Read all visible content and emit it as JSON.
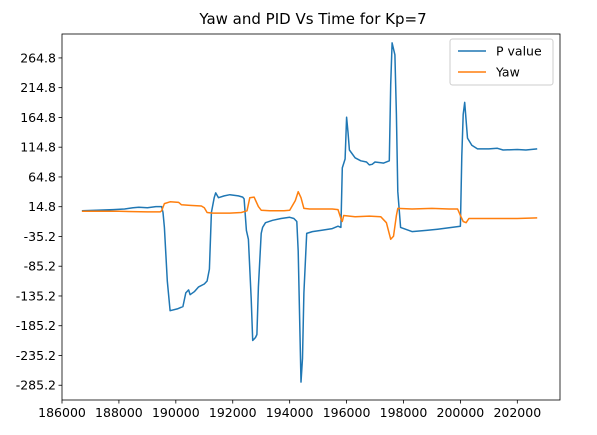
{
  "chart_data": {
    "type": "line",
    "title": "Yaw and PID Vs Time for Kp=7",
    "xlabel": "",
    "ylabel": "",
    "xlim": [
      186000,
      203500
    ],
    "ylim": [
      -310,
      305
    ],
    "x_ticks": [
      186000,
      188000,
      190000,
      192000,
      194000,
      196000,
      198000,
      200000,
      202000
    ],
    "y_ticks": [
      -285.2,
      -235.2,
      -185.2,
      -135.2,
      -85.2,
      -35.2,
      14.8,
      64.8,
      114.8,
      164.8,
      214.8,
      264.8
    ],
    "grid": false,
    "legend_position": "top-right",
    "series": [
      {
        "name": "P value",
        "color": "#1f77b4",
        "points": [
          [
            186700,
            8
          ],
          [
            187200,
            9
          ],
          [
            187800,
            10
          ],
          [
            188200,
            11
          ],
          [
            188500,
            13
          ],
          [
            188700,
            14
          ],
          [
            189000,
            13
          ],
          [
            189300,
            15
          ],
          [
            189500,
            15
          ],
          [
            189550,
            5
          ],
          [
            189600,
            -20
          ],
          [
            189700,
            -110
          ],
          [
            189800,
            -160
          ],
          [
            190050,
            -157
          ],
          [
            190250,
            -153
          ],
          [
            190350,
            -130
          ],
          [
            190450,
            -125
          ],
          [
            190500,
            -133
          ],
          [
            190650,
            -128
          ],
          [
            190800,
            -120
          ],
          [
            191000,
            -115
          ],
          [
            191100,
            -110
          ],
          [
            191180,
            -90
          ],
          [
            191250,
            5
          ],
          [
            191350,
            30
          ],
          [
            191400,
            38
          ],
          [
            191500,
            30
          ],
          [
            191700,
            33
          ],
          [
            191900,
            35
          ],
          [
            192200,
            33
          ],
          [
            192350,
            31
          ],
          [
            192400,
            28
          ],
          [
            192480,
            -25
          ],
          [
            192550,
            -40
          ],
          [
            192650,
            -140
          ],
          [
            192700,
            -210
          ],
          [
            192800,
            -205
          ],
          [
            192850,
            -200
          ],
          [
            192900,
            -120
          ],
          [
            193000,
            -30
          ],
          [
            193050,
            -20
          ],
          [
            193150,
            -12
          ],
          [
            193400,
            -8
          ],
          [
            193700,
            -5
          ],
          [
            194000,
            -3
          ],
          [
            194150,
            -5
          ],
          [
            194250,
            -10
          ],
          [
            194300,
            -60
          ],
          [
            194400,
            -280
          ],
          [
            194450,
            -240
          ],
          [
            194500,
            -130
          ],
          [
            194600,
            -30
          ],
          [
            194800,
            -27
          ],
          [
            195100,
            -25
          ],
          [
            195500,
            -22
          ],
          [
            195700,
            -18
          ],
          [
            195800,
            -20
          ],
          [
            195850,
            80
          ],
          [
            195950,
            95
          ],
          [
            196000,
            165
          ],
          [
            196050,
            140
          ],
          [
            196100,
            110
          ],
          [
            196300,
            97
          ],
          [
            196500,
            92
          ],
          [
            196700,
            90
          ],
          [
            196800,
            85
          ],
          [
            196900,
            86
          ],
          [
            197000,
            90
          ],
          [
            197300,
            88
          ],
          [
            197500,
            92
          ],
          [
            197550,
            220
          ],
          [
            197600,
            290
          ],
          [
            197700,
            270
          ],
          [
            197750,
            170
          ],
          [
            197800,
            40
          ],
          [
            197900,
            -20
          ],
          [
            198300,
            -27
          ],
          [
            198800,
            -25
          ],
          [
            199200,
            -23
          ],
          [
            199700,
            -20
          ],
          [
            200000,
            -18
          ],
          [
            200050,
            100
          ],
          [
            200100,
            170
          ],
          [
            200150,
            190
          ],
          [
            200200,
            160
          ],
          [
            200250,
            130
          ],
          [
            200400,
            118
          ],
          [
            200600,
            112
          ],
          [
            201000,
            112
          ],
          [
            201300,
            113
          ],
          [
            201500,
            110
          ],
          [
            202000,
            111
          ],
          [
            202300,
            110
          ],
          [
            202700,
            112
          ]
        ]
      },
      {
        "name": "Yaw",
        "color": "#ff7f0e",
        "points": [
          [
            186700,
            7
          ],
          [
            188000,
            7
          ],
          [
            189000,
            6
          ],
          [
            189450,
            6
          ],
          [
            189500,
            8
          ],
          [
            189600,
            20
          ],
          [
            189800,
            23
          ],
          [
            190100,
            22
          ],
          [
            190200,
            18
          ],
          [
            190500,
            17
          ],
          [
            190900,
            16
          ],
          [
            191000,
            13
          ],
          [
            191100,
            5
          ],
          [
            191300,
            4
          ],
          [
            191900,
            4
          ],
          [
            192300,
            5
          ],
          [
            192500,
            8
          ],
          [
            192600,
            30
          ],
          [
            192750,
            31
          ],
          [
            192900,
            15
          ],
          [
            193000,
            9
          ],
          [
            193300,
            8
          ],
          [
            193800,
            8
          ],
          [
            194000,
            9
          ],
          [
            194200,
            25
          ],
          [
            194300,
            40
          ],
          [
            194400,
            30
          ],
          [
            194500,
            12
          ],
          [
            194700,
            11
          ],
          [
            195500,
            11
          ],
          [
            195700,
            10
          ],
          [
            195800,
            -5
          ],
          [
            195850,
            -10
          ],
          [
            195900,
            0
          ],
          [
            196300,
            -2
          ],
          [
            196800,
            -1
          ],
          [
            197200,
            -2
          ],
          [
            197400,
            -12
          ],
          [
            197550,
            -40
          ],
          [
            197650,
            -35
          ],
          [
            197750,
            0
          ],
          [
            197800,
            12
          ],
          [
            198300,
            11
          ],
          [
            199000,
            12
          ],
          [
            199600,
            11
          ],
          [
            199900,
            11
          ],
          [
            200000,
            0
          ],
          [
            200100,
            -10
          ],
          [
            200200,
            -12
          ],
          [
            200300,
            -5
          ],
          [
            200500,
            -5
          ],
          [
            201500,
            -5
          ],
          [
            202000,
            -5
          ],
          [
            202700,
            -4
          ]
        ]
      }
    ]
  }
}
